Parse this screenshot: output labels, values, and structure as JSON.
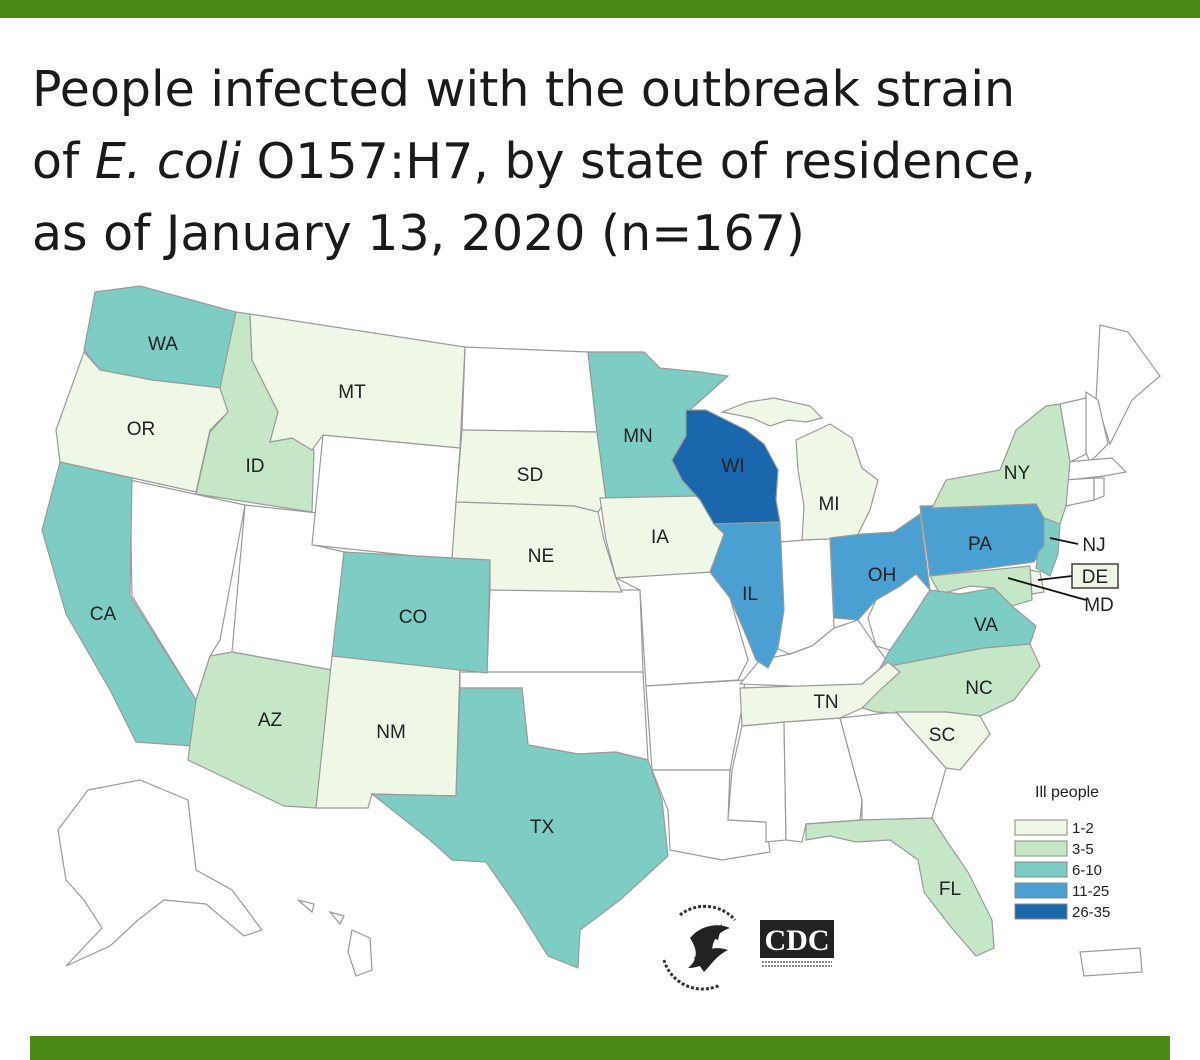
{
  "title": {
    "line1": "People infected with the outbreak strain",
    "line2_prefix": "of ",
    "line2_italic": "E. coli",
    "line2_suffix": " O157:H7, by state of residence,",
    "line3": "as of January 13, 2020 (n=167)"
  },
  "colors": {
    "bar": "#4a8a14",
    "none": "#ffffff",
    "1-2": "#eff7e6",
    "3-5": "#c5e7c6",
    "6-10": "#7ecdc4",
    "11-25": "#4aa0d0",
    "26-35": "#1b67ae"
  },
  "legend": {
    "title": "Ill people",
    "items": [
      {
        "label": "1-2",
        "color": "#eff7e6"
      },
      {
        "label": "3-5",
        "color": "#c5e7c6"
      },
      {
        "label": "6-10",
        "color": "#7ecdc4"
      },
      {
        "label": "11-25",
        "color": "#4aa0d0"
      },
      {
        "label": "26-35",
        "color": "#1b67ae"
      }
    ]
  },
  "states": {
    "WA": {
      "label": "WA",
      "range": "6-10"
    },
    "OR": {
      "label": "OR",
      "range": "1-2"
    },
    "CA": {
      "label": "CA",
      "range": "6-10"
    },
    "ID": {
      "label": "ID",
      "range": "3-5"
    },
    "MT": {
      "label": "MT",
      "range": "1-2"
    },
    "AZ": {
      "label": "AZ",
      "range": "3-5"
    },
    "NM": {
      "label": "NM",
      "range": "1-2"
    },
    "CO": {
      "label": "CO",
      "range": "6-10"
    },
    "SD": {
      "label": "SD",
      "range": "1-2"
    },
    "NE": {
      "label": "NE",
      "range": "1-2"
    },
    "TX": {
      "label": "TX",
      "range": "6-10"
    },
    "MN": {
      "label": "MN",
      "range": "6-10"
    },
    "IA": {
      "label": "IA",
      "range": "1-2"
    },
    "WI": {
      "label": "WI",
      "range": "26-35"
    },
    "IL": {
      "label": "IL",
      "range": "11-25"
    },
    "MI": {
      "label": "MI",
      "range": "1-2"
    },
    "OH": {
      "label": "OH",
      "range": "11-25"
    },
    "PA": {
      "label": "PA",
      "range": "11-25"
    },
    "NY": {
      "label": "NY",
      "range": "3-5"
    },
    "NJ": {
      "label": "NJ",
      "range": "6-10"
    },
    "DE": {
      "label": "DE",
      "range": "1-2"
    },
    "MD": {
      "label": "MD",
      "range": "3-5"
    },
    "VA": {
      "label": "VA",
      "range": "6-10"
    },
    "NC": {
      "label": "NC",
      "range": "3-5"
    },
    "SC": {
      "label": "SC",
      "range": "1-2"
    },
    "TN": {
      "label": "TN",
      "range": "1-2"
    },
    "FL": {
      "label": "FL",
      "range": "3-5"
    }
  },
  "logos": {
    "hhs": "department-of-health-and-human-services-seal",
    "cdc": "CDC",
    "cdc_sub": "CENTERS FOR DISEASE CONTROL AND PREVENTION"
  }
}
